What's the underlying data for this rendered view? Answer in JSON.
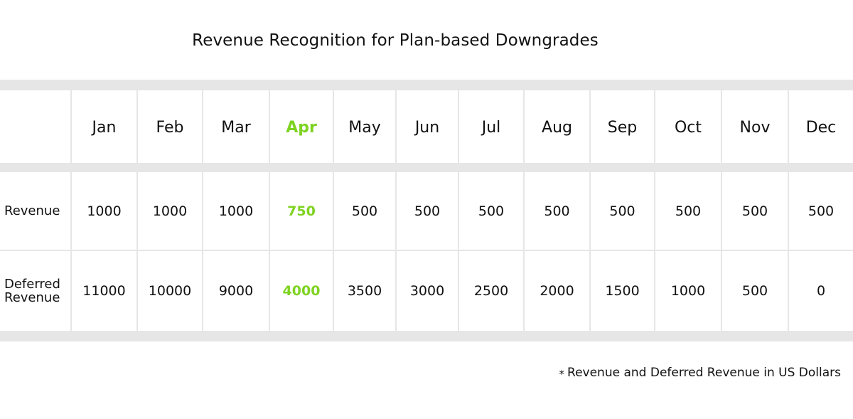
{
  "title": "Revenue Recognition for Plan-based Downgrades",
  "highlight_color": "#7ed321",
  "table": {
    "header_first": "",
    "months": [
      "Jan",
      "Feb",
      "Mar",
      "Apr",
      "May",
      "Jun",
      "Jul",
      "Aug",
      "Sep",
      "Oct",
      "Nov",
      "Dec"
    ],
    "highlight_month": "Apr",
    "rows": [
      {
        "label": "Revenue",
        "values": [
          "1000",
          "1000",
          "1000",
          "750",
          "500",
          "500",
          "500",
          "500",
          "500",
          "500",
          "500",
          "500"
        ]
      },
      {
        "label": "Deferred\nRevenue",
        "values": [
          "11000",
          "10000",
          "9000",
          "4000",
          "3500",
          "3000",
          "2500",
          "2000",
          "1500",
          "1000",
          "500",
          "0"
        ]
      }
    ]
  },
  "footnote": {
    "marker": "*",
    "text": "Revenue and Deferred Revenue in US Dollars"
  }
}
